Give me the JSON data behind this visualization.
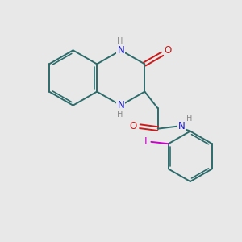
{
  "bg_color": "#e8e8e8",
  "bond_color": "#2d6b6b",
  "N_color": "#1a1acc",
  "O_color": "#cc1a1a",
  "I_color": "#cc00cc",
  "H_color": "#888888",
  "line_width": 1.4,
  "figsize": [
    3.0,
    3.0
  ],
  "dpi": 100,
  "xlim": [
    0,
    10
  ],
  "ylim": [
    0,
    10
  ]
}
